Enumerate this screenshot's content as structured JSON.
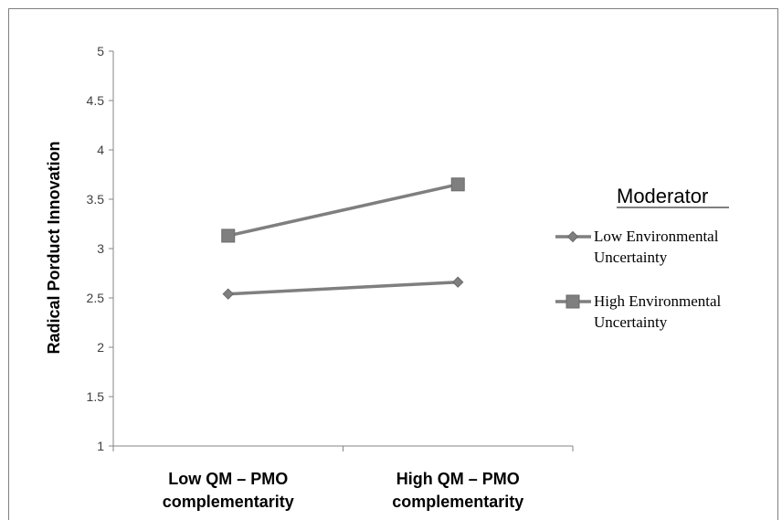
{
  "chart_data": {
    "type": "line",
    "categories": [
      "Low QM – PMO complementarity",
      "High QM – PMO complementarity"
    ],
    "category_lines": [
      [
        "Low QM – PMO",
        "complementarity"
      ],
      [
        "High QM – PMO",
        "complementarity"
      ]
    ],
    "series": [
      {
        "name": "Low Environmental Uncertainty",
        "name_lines": [
          "Low Environmental",
          "Uncertainty"
        ],
        "values": [
          2.54,
          2.66
        ],
        "marker": "diamond",
        "color": "#7f7f7f"
      },
      {
        "name": "High Environmental Uncertainty",
        "name_lines": [
          "High Environmental",
          "Uncertainty"
        ],
        "values": [
          3.13,
          3.65
        ],
        "marker": "square",
        "color": "#7f7f7f"
      }
    ],
    "title": "",
    "xlabel": "",
    "ylabel": "Radical Porduct Innovation",
    "ylim": [
      1,
      5
    ],
    "yticks": [
      "1",
      "1.5",
      "2",
      "2.5",
      "3",
      "3.5",
      "4",
      "4.5",
      "5"
    ],
    "legend": {
      "title": "Moderator",
      "placement": "right"
    },
    "grid": false
  }
}
